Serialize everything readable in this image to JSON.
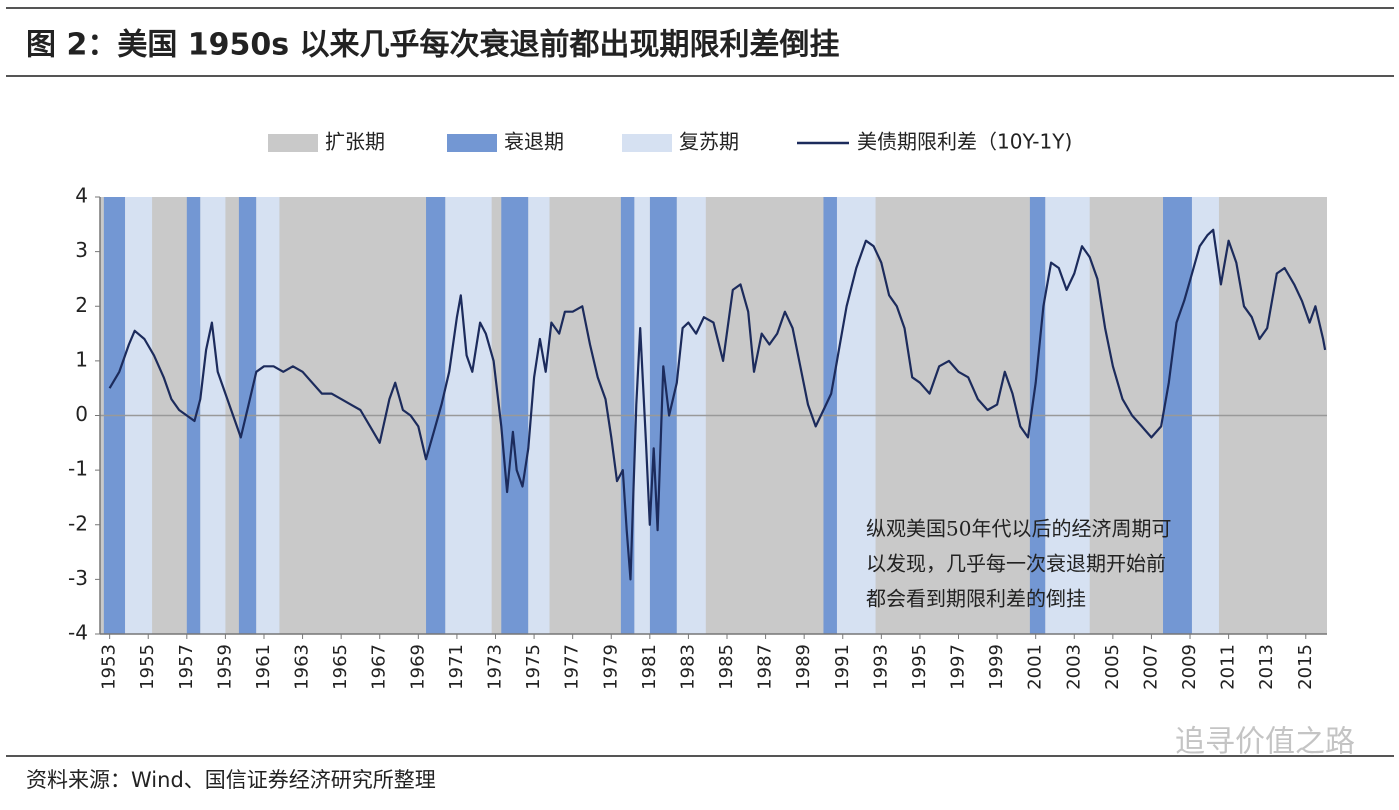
{
  "chart_data": {
    "type": "line",
    "title": "图 2：美国 1950s 以来几乎每次衰退前都出现期限利差倒挂",
    "source": "资料来源：Wind、国信证券经济研究所整理",
    "watermark": "追寻价值之路",
    "annotation": [
      "纵观美国50年代以后的经济周期可",
      "以发现，几乎每一次衰退期开始前",
      "都会看到期限利差的倒挂"
    ],
    "xlim": [
      1952.5,
      2016.1
    ],
    "ylim": [
      -4,
      4
    ],
    "xticks": [
      1953,
      1955,
      1957,
      1959,
      1961,
      1963,
      1965,
      1967,
      1969,
      1971,
      1973,
      1975,
      1977,
      1979,
      1981,
      1983,
      1985,
      1987,
      1989,
      1991,
      1993,
      1995,
      1997,
      1999,
      2001,
      2003,
      2005,
      2007,
      2009,
      2011,
      2013,
      2015
    ],
    "yticks": [
      -4,
      -3,
      -2,
      -1,
      0,
      1,
      2,
      3,
      4
    ],
    "periods": [
      {
        "name": "扩张期",
        "color": "#c9c9c9"
      },
      {
        "name": "衰退期",
        "color": "#7397d3",
        "ranges": [
          [
            1952.7,
            1953.8
          ],
          [
            1957.0,
            1957.7
          ],
          [
            1959.7,
            1960.6
          ],
          [
            1969.4,
            1970.4
          ],
          [
            1973.3,
            1974.7
          ],
          [
            1979.5,
            1980.2
          ],
          [
            1981.0,
            1982.4
          ],
          [
            1990.0,
            1990.7
          ],
          [
            2000.7,
            2001.5
          ],
          [
            2007.6,
            2009.1
          ]
        ]
      },
      {
        "name": "复苏期",
        "color": "#d6e1f2",
        "ranges": [
          [
            1953.8,
            1955.2
          ],
          [
            1957.7,
            1959.0
          ],
          [
            1960.6,
            1961.8
          ],
          [
            1970.4,
            1972.8
          ],
          [
            1974.7,
            1975.8
          ],
          [
            1980.2,
            1981.0
          ],
          [
            1982.4,
            1983.9
          ],
          [
            1990.7,
            1992.7
          ],
          [
            2001.5,
            2003.8
          ],
          [
            2009.1,
            2010.5
          ]
        ]
      }
    ],
    "x": [
      1953.0,
      1953.5,
      1954.0,
      1954.3,
      1954.8,
      1955.3,
      1955.8,
      1956.2,
      1956.6,
      1957.0,
      1957.4,
      1957.7,
      1958.0,
      1958.3,
      1958.6,
      1959.0,
      1959.4,
      1959.8,
      1960.2,
      1960.6,
      1961.0,
      1961.5,
      1962.0,
      1962.5,
      1963.0,
      1963.5,
      1964.0,
      1964.5,
      1965.0,
      1965.5,
      1966.0,
      1966.5,
      1967.0,
      1967.5,
      1967.8,
      1968.2,
      1968.6,
      1969.0,
      1969.4,
      1969.8,
      1970.2,
      1970.6,
      1971.0,
      1971.2,
      1971.5,
      1971.8,
      1972.2,
      1972.5,
      1972.9,
      1973.3,
      1973.6,
      1973.9,
      1974.1,
      1974.4,
      1974.7,
      1975.0,
      1975.3,
      1975.6,
      1975.9,
      1976.3,
      1976.6,
      1977.0,
      1977.5,
      1977.9,
      1978.3,
      1978.7,
      1979.0,
      1979.3,
      1979.6,
      1979.8,
      1980.0,
      1980.3,
      1980.5,
      1980.8,
      1981.0,
      1981.2,
      1981.4,
      1981.7,
      1982.0,
      1982.4,
      1982.7,
      1983.0,
      1983.4,
      1983.8,
      1984.3,
      1984.8,
      1985.3,
      1985.7,
      1986.1,
      1986.4,
      1986.8,
      1987.2,
      1987.6,
      1988.0,
      1988.4,
      1988.8,
      1989.2,
      1989.6,
      1990.0,
      1990.4,
      1990.8,
      1991.2,
      1991.7,
      1992.2,
      1992.6,
      1993.0,
      1993.4,
      1993.8,
      1994.2,
      1994.6,
      1995.0,
      1995.5,
      1996.0,
      1996.5,
      1997.0,
      1997.5,
      1998.0,
      1998.5,
      1999.0,
      1999.4,
      1999.8,
      2000.2,
      2000.6,
      2001.0,
      2001.4,
      2001.8,
      2002.2,
      2002.6,
      2003.0,
      2003.4,
      2003.8,
      2004.2,
      2004.6,
      2005.0,
      2005.5,
      2006.0,
      2006.5,
      2007.0,
      2007.5,
      2007.9,
      2008.3,
      2008.7,
      2009.1,
      2009.5,
      2009.9,
      2010.2,
      2010.6,
      2011.0,
      2011.4,
      2011.8,
      2012.2,
      2012.6,
      2013.0,
      2013.5,
      2013.9,
      2014.4,
      2014.8,
      2015.2,
      2015.5,
      2015.9,
      2016.0
    ],
    "series": [
      {
        "name": "美债期限利差（10Y-1Y)",
        "color": "#1c2b5c",
        "values": [
          0.5,
          0.8,
          1.3,
          1.55,
          1.4,
          1.1,
          0.7,
          0.3,
          0.1,
          0.0,
          -0.1,
          0.3,
          1.2,
          1.7,
          0.8,
          0.4,
          0.0,
          -0.4,
          0.2,
          0.8,
          0.9,
          0.9,
          0.8,
          0.9,
          0.8,
          0.6,
          0.4,
          0.4,
          0.3,
          0.2,
          0.1,
          -0.2,
          -0.5,
          0.3,
          0.6,
          0.1,
          0.0,
          -0.2,
          -0.8,
          -0.3,
          0.2,
          0.8,
          1.8,
          2.2,
          1.1,
          0.8,
          1.7,
          1.5,
          1.0,
          -0.2,
          -1.4,
          -0.3,
          -1.0,
          -1.3,
          -0.6,
          0.7,
          1.4,
          0.8,
          1.7,
          1.5,
          1.9,
          1.9,
          2.0,
          1.3,
          0.7,
          0.3,
          -0.4,
          -1.2,
          -1.0,
          -2.1,
          -3.0,
          0.2,
          1.6,
          -0.5,
          -2.0,
          -0.6,
          -2.1,
          0.9,
          0.0,
          0.6,
          1.6,
          1.7,
          1.5,
          1.8,
          1.7,
          1.0,
          2.3,
          2.4,
          1.9,
          0.8,
          1.5,
          1.3,
          1.5,
          1.9,
          1.6,
          0.9,
          0.2,
          -0.2,
          0.1,
          0.4,
          1.2,
          2.0,
          2.7,
          3.2,
          3.1,
          2.8,
          2.2,
          2.0,
          1.6,
          0.7,
          0.6,
          0.4,
          0.9,
          1.0,
          0.8,
          0.7,
          0.3,
          0.1,
          0.2,
          0.8,
          0.4,
          -0.2,
          -0.4,
          0.6,
          2.0,
          2.8,
          2.7,
          2.3,
          2.6,
          3.1,
          2.9,
          2.5,
          1.6,
          0.9,
          0.3,
          0.0,
          -0.2,
          -0.4,
          -0.2,
          0.6,
          1.7,
          2.1,
          2.6,
          3.1,
          3.3,
          3.4,
          2.4,
          3.2,
          2.8,
          2.0,
          1.8,
          1.4,
          1.6,
          2.6,
          2.7,
          2.4,
          2.1,
          1.7,
          2.0,
          1.4,
          1.2
        ]
      }
    ]
  }
}
